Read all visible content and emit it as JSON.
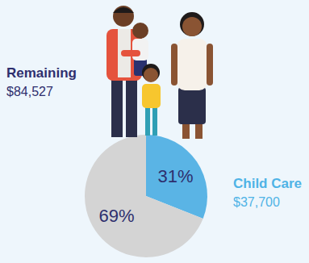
{
  "chart_data": {
    "type": "pie",
    "categories": [
      "Child Care",
      "Remaining"
    ],
    "values": [
      31,
      69
    ],
    "value_labels": [
      "31%",
      "69%"
    ],
    "amounts": [
      37700,
      84527
    ],
    "amount_labels": [
      "$37,700",
      "$84,527"
    ],
    "colors": [
      "#5ab4e5",
      "#d4d4d4"
    ],
    "data_labels": true
  }
}
